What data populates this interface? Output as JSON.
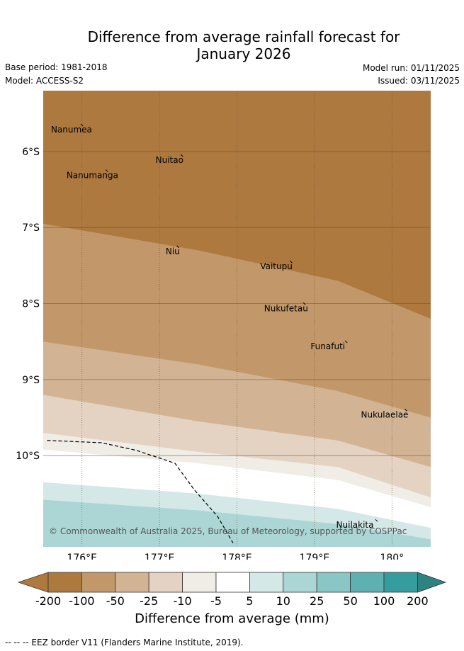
{
  "title_line1": "Difference from average rainfall forecast for",
  "title_line2": "January 2026",
  "base_period": "Base period: 1981-2018",
  "model": "Model: ACCESS-S2",
  "model_run": "Model run: 01/11/2025",
  "issued": "Issued: 03/11/2025",
  "map": {
    "lon_range": [
      175.5,
      180.5
    ],
    "lat_range": [
      -11.2,
      -5.2
    ],
    "lon_ticks": [
      {
        "value": 176,
        "label": "176°E"
      },
      {
        "value": 177,
        "label": "177°E"
      },
      {
        "value": 178,
        "label": "178°E"
      },
      {
        "value": 179,
        "label": "179°E"
      },
      {
        "value": 180,
        "label": "180°"
      }
    ],
    "lat_ticks": [
      {
        "value": -6,
        "label": "6°S"
      },
      {
        "value": -7,
        "label": "7°S"
      },
      {
        "value": -8,
        "label": "8°S"
      },
      {
        "value": -9,
        "label": "9°S"
      },
      {
        "value": -10,
        "label": "10°S"
      }
    ],
    "places": [
      {
        "name": "Nanumea",
        "lon": 175.6,
        "lat": -5.75
      },
      {
        "name": "Nuitao",
        "lon": 176.95,
        "lat": -6.15
      },
      {
        "name": "Nanumanga",
        "lon": 175.8,
        "lat": -6.35
      },
      {
        "name": "Niu",
        "lon": 177.08,
        "lat": -7.35
      },
      {
        "name": "Vaitupu",
        "lon": 178.3,
        "lat": -7.55
      },
      {
        "name": "Nukufetau",
        "lon": 178.35,
        "lat": -8.1
      },
      {
        "name": "Funafuti",
        "lon": 178.95,
        "lat": -8.6
      },
      {
        "name": "Nukulaelae",
        "lon": 179.6,
        "lat": -9.5
      },
      {
        "name": "Nuilakita",
        "lon": 179.28,
        "lat": -10.95
      }
    ],
    "eez_border": [
      [
        175.55,
        -9.8
      ],
      [
        176.25,
        -9.83
      ],
      [
        176.7,
        -9.93
      ],
      [
        177.2,
        -10.1
      ],
      [
        177.45,
        -10.45
      ],
      [
        177.75,
        -10.8
      ],
      [
        177.95,
        -11.15
      ]
    ],
    "bands": [
      {
        "range": "-200 to -100",
        "color": "#ad793f",
        "top_lat": [
          -5.2,
          -5.2,
          -5.2,
          -5.2
        ]
      },
      {
        "range": "-100 to -50",
        "color": "#c2976a",
        "top_lat": [
          -6.95,
          -7.3,
          -7.7,
          -8.2
        ]
      },
      {
        "range": "-50 to -25",
        "color": "#d2b394",
        "top_lat": [
          -8.5,
          -8.8,
          -9.15,
          -9.5
        ]
      },
      {
        "range": "-25 to -10",
        "color": "#e4d3c2",
        "top_lat": [
          -9.2,
          -9.55,
          -9.8,
          -10.15
        ]
      },
      {
        "range": "-10 to -5",
        "color": "#f0ece6",
        "top_lat": [
          -9.7,
          -9.95,
          -10.15,
          -10.55
        ]
      },
      {
        "range": "-5 to 5",
        "color": "#ffffff",
        "top_lat": [
          -9.92,
          -10.1,
          -10.32,
          -10.68
        ]
      },
      {
        "range": "5 to 10",
        "color": "#d4e8e7",
        "top_lat": [
          -10.35,
          -10.5,
          -10.7,
          -10.95
        ]
      },
      {
        "range": "10 to 25",
        "color": "#acd6d5",
        "top_lat": [
          -10.58,
          -10.72,
          -10.9,
          -11.1
        ]
      }
    ],
    "credit": "© Commonwealth of Australia 2025, Bureau of Meteorology, supported by COSPPac"
  },
  "colorbar": {
    "title": "Difference from average (mm)",
    "colors": [
      "#ad793f",
      "#ad793f",
      "#c2976a",
      "#d2b394",
      "#e4d3c2",
      "#f0ece6",
      "#ffffff",
      "#d4e8e7",
      "#acd6d5",
      "#8ac6c5",
      "#5fb0b0",
      "#359d9d",
      "#2f8282"
    ],
    "ticks": [
      "-200",
      "-100",
      "-50",
      "-25",
      "-10",
      "-5",
      "5",
      "10",
      "25",
      "50",
      "100",
      "200"
    ]
  },
  "footer": "--  --  -- EEZ border V11 (Flanders Marine Institute, 2019)."
}
